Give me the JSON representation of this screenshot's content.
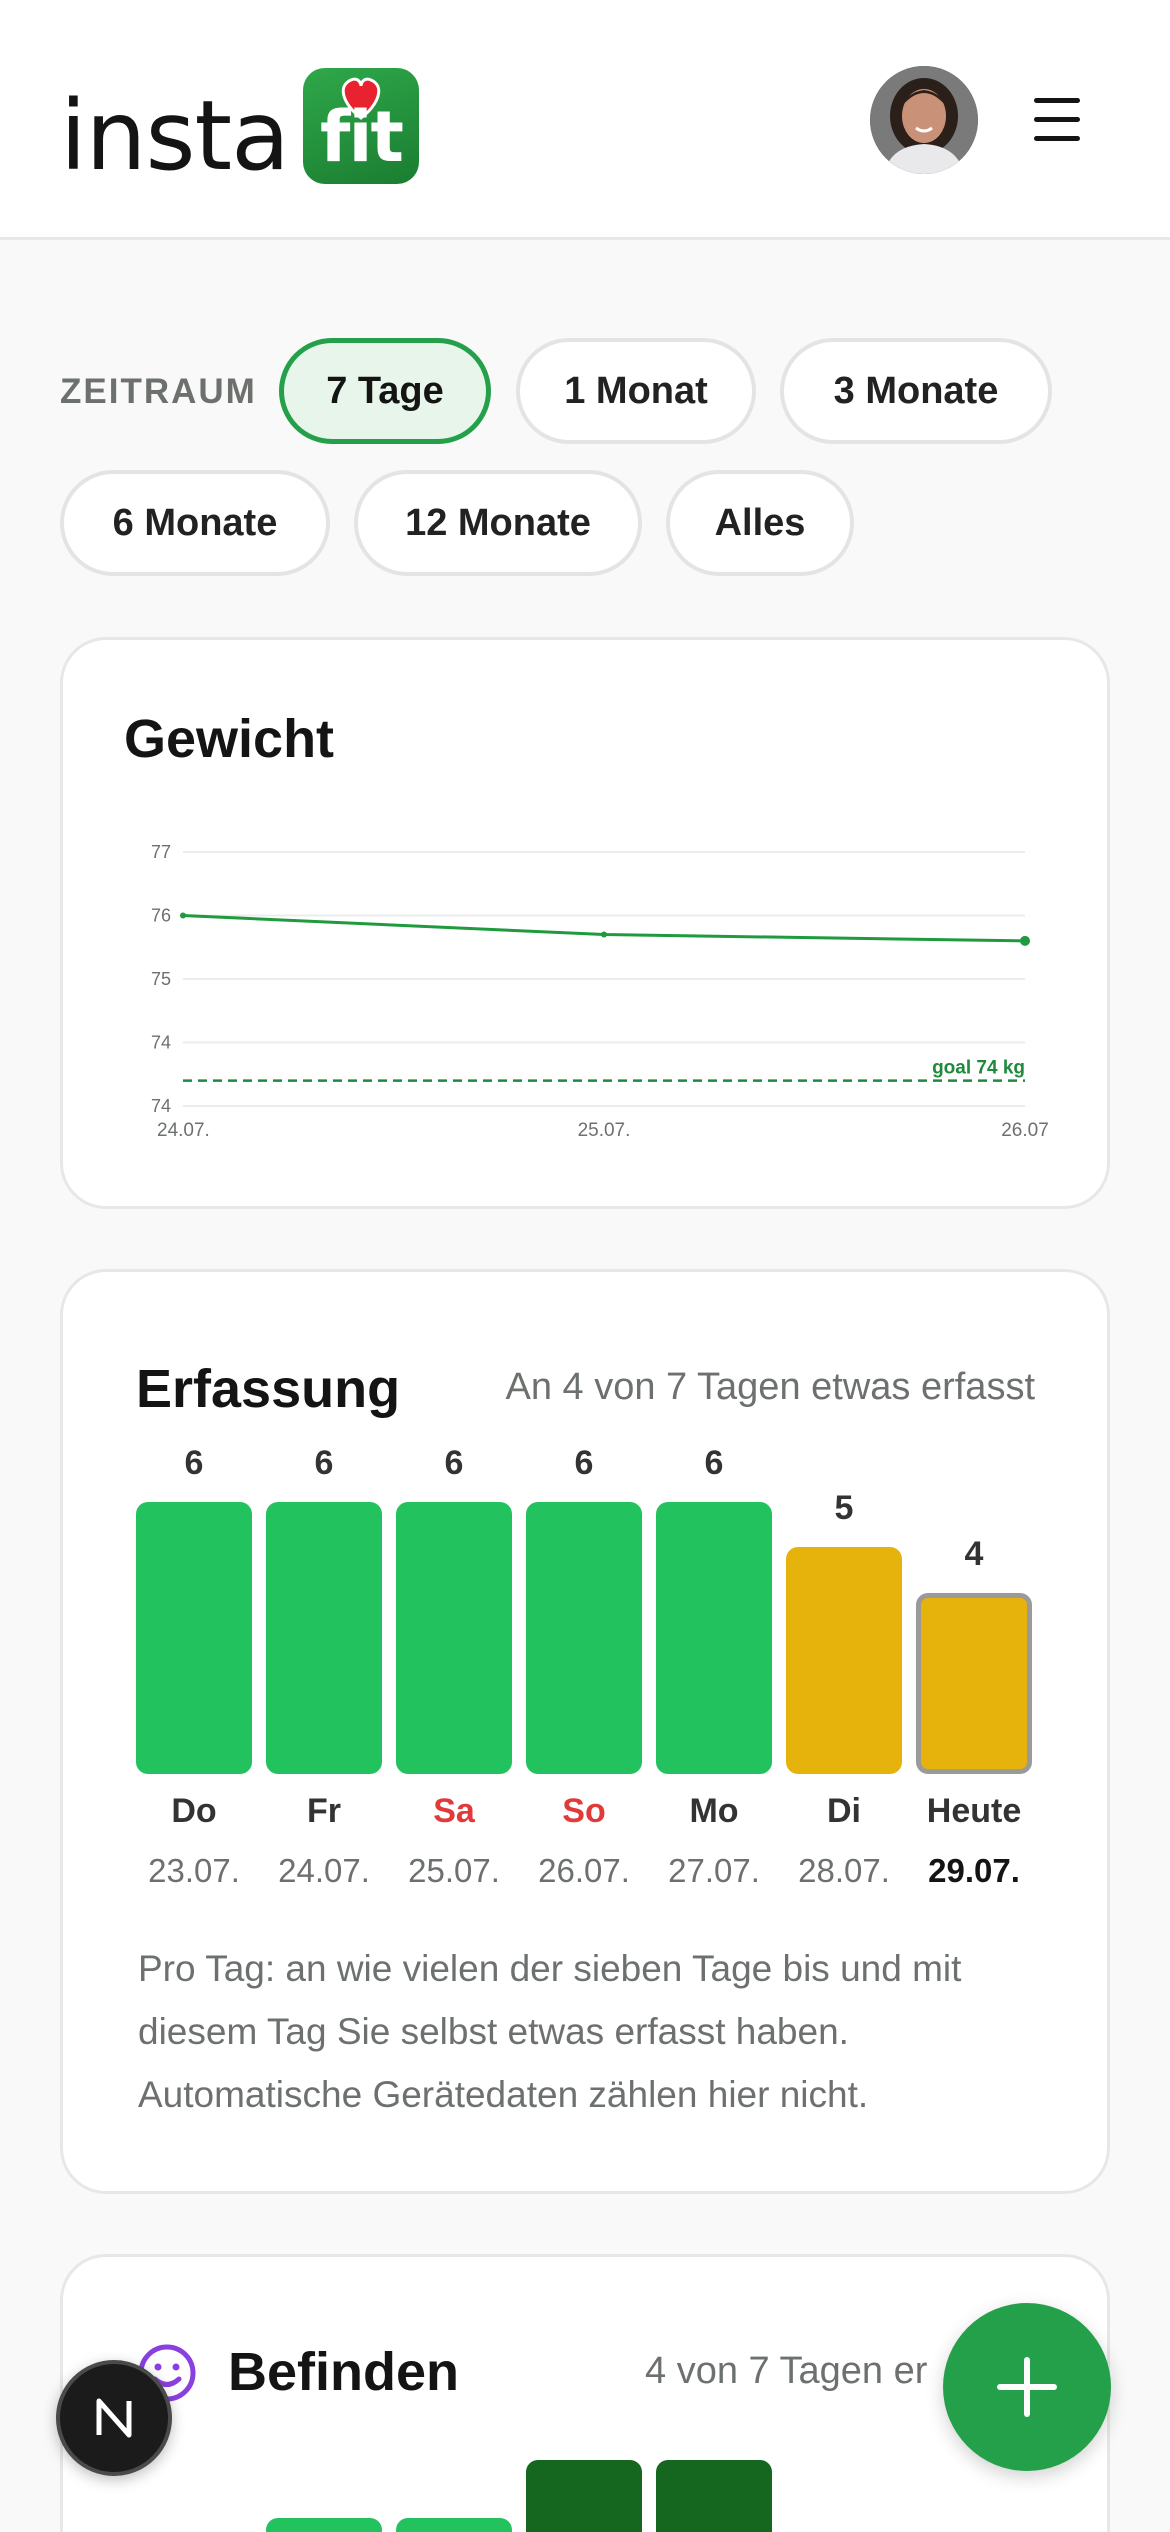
{
  "header": {
    "logo_text": "insta",
    "logo_badge_text": "fit",
    "menu_icon": "hamburger-menu-icon"
  },
  "period": {
    "label": "ZEITRAUM",
    "options": [
      "7 Tage",
      "1 Monat",
      "3 Monate",
      "6 Monate",
      "12 Monate",
      "Alles"
    ],
    "selected": "7 Tage"
  },
  "weight_card": {
    "title": "Gewicht",
    "chart_data": {
      "type": "line",
      "x": [
        "24.07.",
        "25.07.",
        "26.07"
      ],
      "series": [
        {
          "values": [
            76.6,
            76.3,
            76.2
          ]
        }
      ],
      "y_tick_labels": [
        "77",
        "76",
        "75",
        "74",
        "74"
      ],
      "ylim": [
        73.6,
        77.6
      ],
      "goal": {
        "value": 74.0,
        "label": "goal 74 kg"
      },
      "grid": true,
      "colors": {
        "line": "#1f9a3e",
        "goal": "#1f8a3c"
      }
    }
  },
  "tracking_card": {
    "title": "Erfassung",
    "subtitle": "An 4 von 7 Tagen etwas erfasst",
    "chart_data": {
      "type": "bar",
      "categories": [
        "Do",
        "Fr",
        "Sa",
        "So",
        "Mo",
        "Di",
        "Heute"
      ],
      "dates": [
        "23.07.",
        "24.07.",
        "25.07.",
        "26.07.",
        "27.07.",
        "28.07.",
        "29.07."
      ],
      "values": [
        6,
        6,
        6,
        6,
        6,
        5,
        4
      ],
      "ylim": [
        0,
        7
      ],
      "colors": [
        "#22c35e",
        "#22c35e",
        "#22c35e",
        "#22c35e",
        "#22c35e",
        "#e6b20c",
        "#e6b20c"
      ],
      "weekend_color": "#e03a3a"
    },
    "note": "Pro Tag: an wie vielen der sieben Tage bis und mit diesem Tag Sie selbst etwas erfasst haben. Automatische Gerätedaten zählen hier nicht."
  },
  "mood_card": {
    "title": "Befinden",
    "subtitle": "4 von 7 Tagen er",
    "icon": "smiley-icon"
  },
  "fab": {
    "icon": "plus-icon"
  },
  "bottom_badge": {
    "text": "N"
  }
}
